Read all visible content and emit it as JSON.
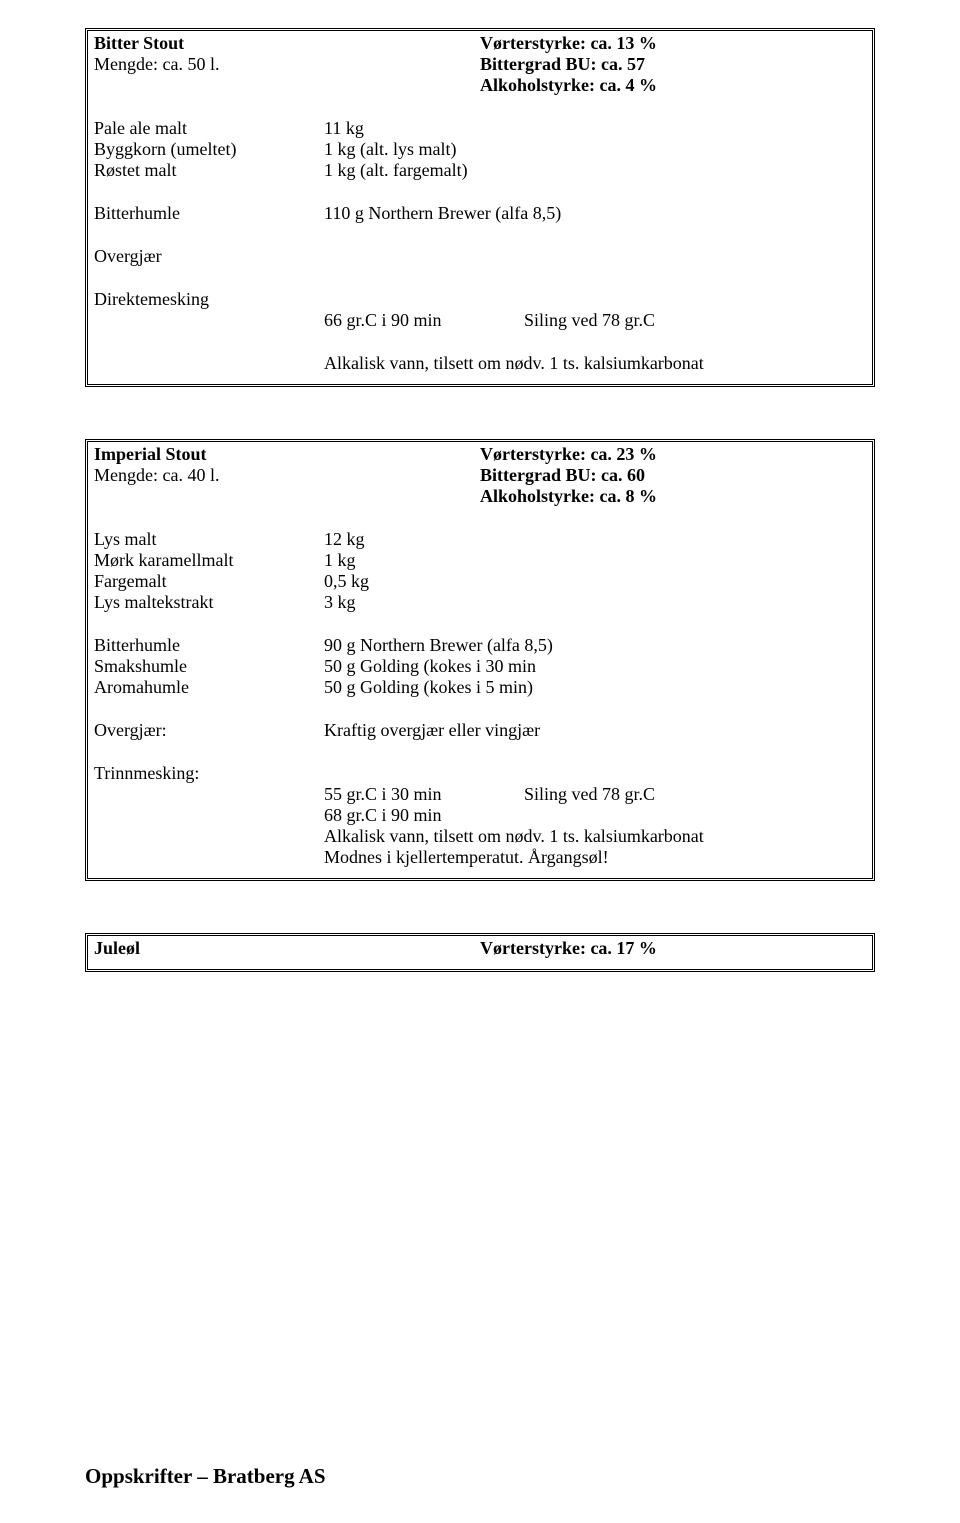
{
  "recipe1": {
    "title": "Bitter Stout",
    "volume": "Mengde: ca. 50 l.",
    "og": "Vørterstyrke: ca. 13 %",
    "bu": "Bittergrad BU: ca. 57",
    "abv": "Alkoholstyrke: ca. 4 %",
    "ingredients": [
      {
        "name": "Pale ale malt",
        "amount": "11 kg"
      },
      {
        "name": "Byggkorn (umeltet)",
        "amount": " 1 kg (alt. lys malt)"
      },
      {
        "name": "Røstet malt",
        "amount": " 1 kg (alt. fargemalt)"
      }
    ],
    "bitter_label": "Bitterhumle",
    "bitter_val": "110 g Northern Brewer (alfa 8,5)",
    "yeast": "Overgjær",
    "mash_title": "Direktemesking",
    "mash_a": "66 gr.C i 90 min",
    "mash_b": "Siling ved 78 gr.C",
    "note": "Alkalisk vann, tilsett om nødv. 1 ts. kalsiumkarbonat"
  },
  "recipe2": {
    "title": "Imperial  Stout",
    "volume": "Mengde: ca. 40 l.",
    "og": "Vørterstyrke: ca. 23 %",
    "bu": "Bittergrad BU: ca. 60",
    "abv": "Alkoholstyrke: ca. 8 %",
    "ingredients": [
      {
        "name": "Lys malt",
        "amount": "12  kg"
      },
      {
        "name": "Mørk karamellmalt",
        "amount": "  1  kg"
      },
      {
        "name": "Fargemalt",
        "amount": " 0,5 kg"
      },
      {
        "name": "Lys maltekstrakt",
        "amount": "   3 kg"
      }
    ],
    "hops": [
      {
        "name": "Bitterhumle",
        "val": "90 g Northern Brewer (alfa 8,5)"
      },
      {
        "name": "Smakshumle",
        "val": "50 g Golding (kokes i 30 min"
      },
      {
        "name": "Aromahumle",
        "val": "50 g Golding (kokes i 5 min)"
      }
    ],
    "yeast_label": "Overgjær:",
    "yeast_val": "Kraftig overgjær eller vingjær",
    "mash_title": "Trinnmesking:",
    "mash_a1": "55 gr.C i 30 min",
    "mash_b1": "Siling ved 78 gr.C",
    "mash_a2": "68 gr.C i 90 min",
    "note1": "Alkalisk vann, tilsett om nødv. 1 ts. kalsiumkarbonat",
    "note2": "Modnes i kjellertemperatut. Årgangsøl!"
  },
  "recipe3": {
    "title": "Juleøl",
    "og": "Vørterstyrke: ca. 17 %"
  },
  "footer": "Oppskrifter  – Bratberg AS"
}
